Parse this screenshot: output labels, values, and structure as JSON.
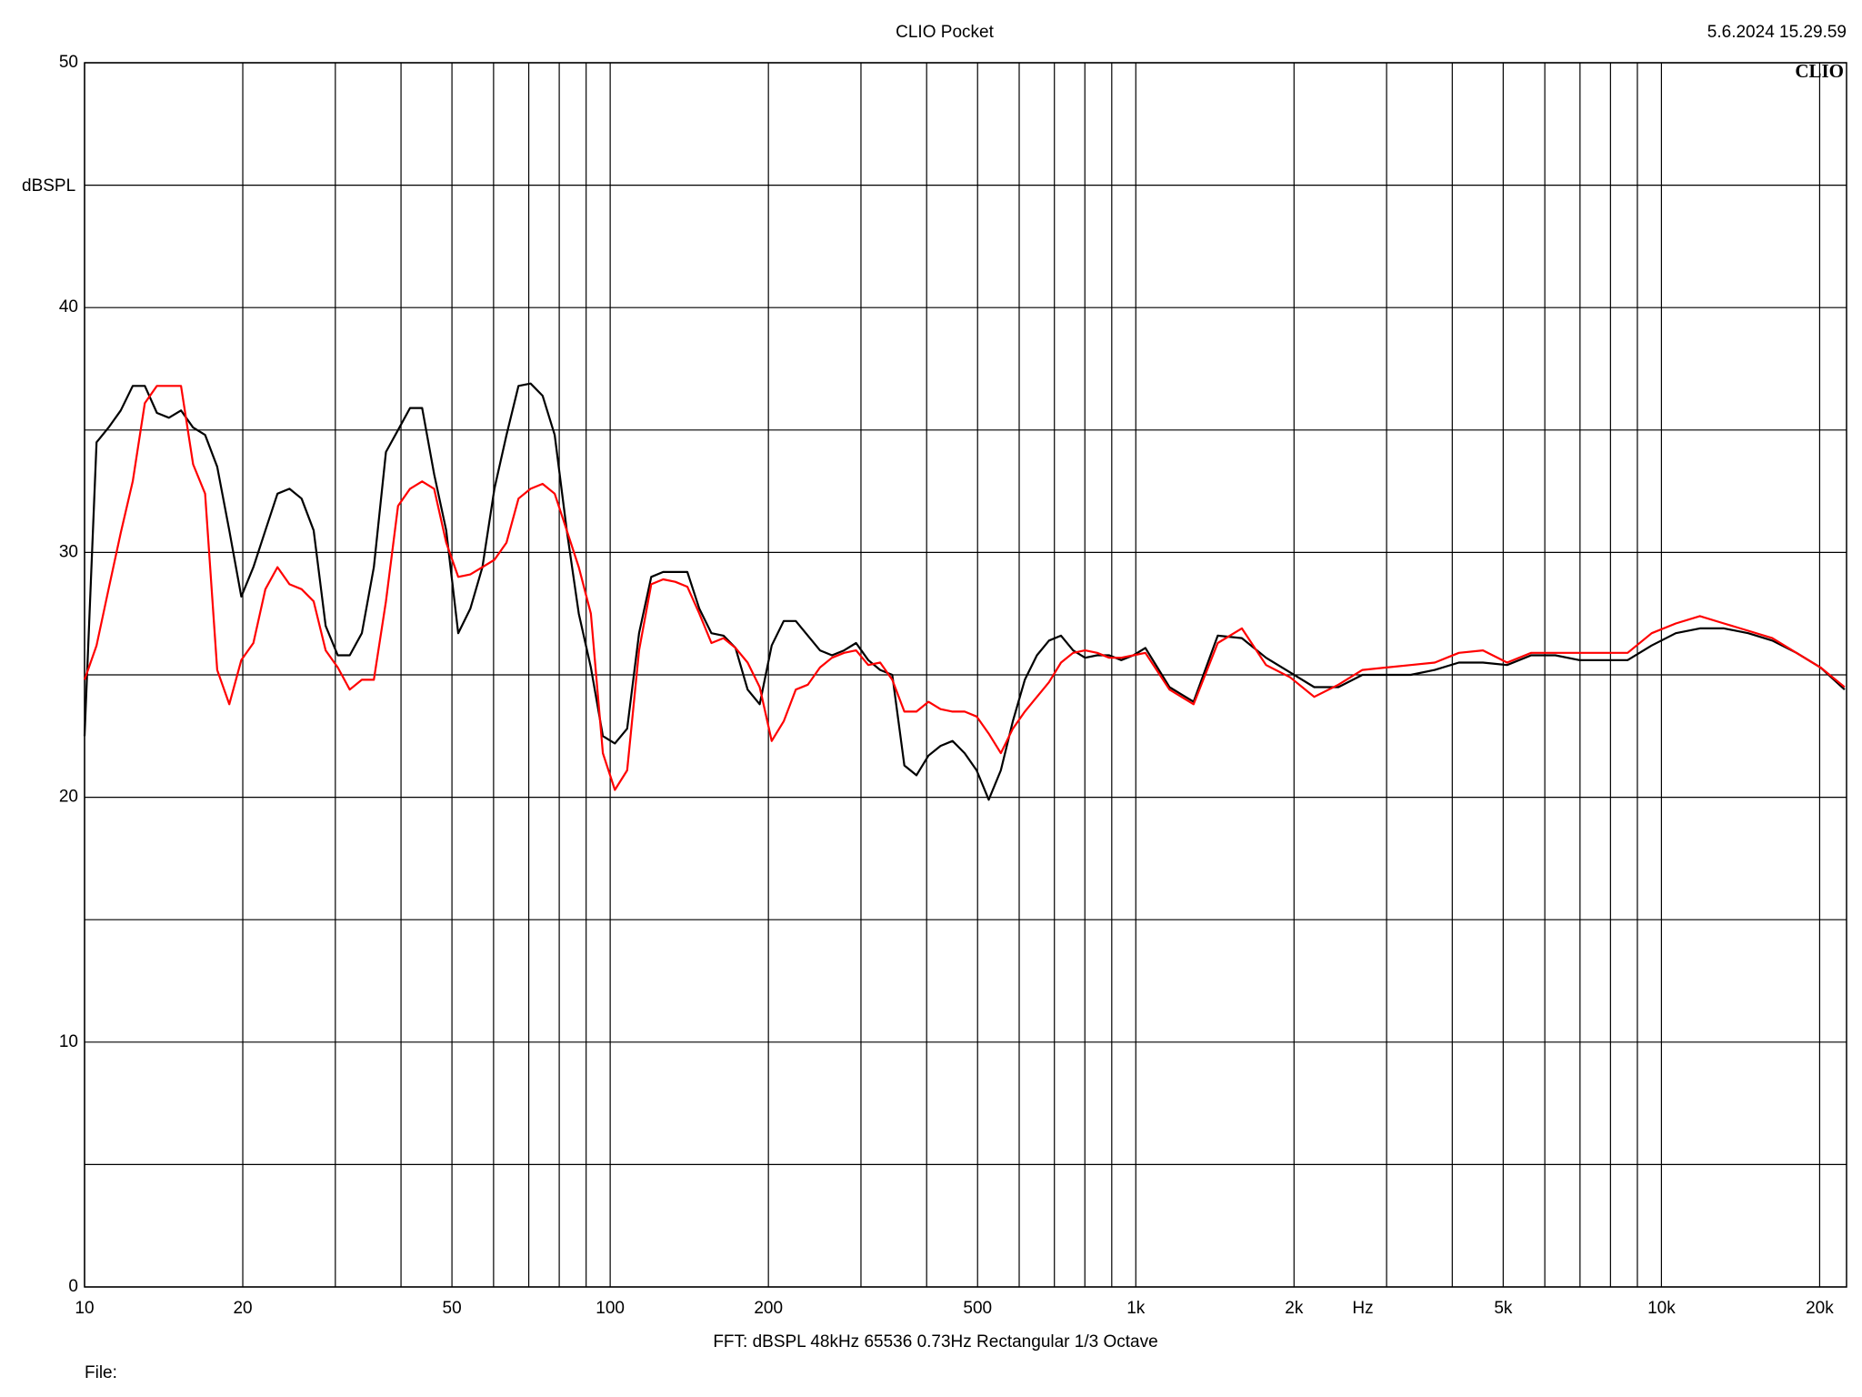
{
  "chart_data": {
    "type": "line",
    "title": "CLIO Pocket",
    "timestamp": "5.6.2024 15.29.59",
    "logo": "CLIO",
    "y_label": "dBSPL",
    "x_label": "Hz",
    "footer": "FFT:  dBSPL  48kHz   65536  0.73Hz  Rectangular  1/3 Octave",
    "file_label": "File:",
    "xscale": "log",
    "grid": true,
    "xlim": [
      10,
      22500
    ],
    "ylim": [
      0,
      50
    ],
    "yticks": [
      0,
      10,
      20,
      30,
      40,
      50
    ],
    "ygrid_minor": [
      5,
      15,
      25,
      35,
      45
    ],
    "xticks": [
      10,
      20,
      50,
      100,
      200,
      500,
      {
        "value": 1000,
        "label": "1k"
      },
      {
        "value": 2000,
        "label": "2k"
      },
      {
        "value": 5000,
        "label": "5k"
      },
      {
        "value": 10000,
        "label": "10k"
      },
      {
        "value": 20000,
        "label": "20k"
      }
    ],
    "xgrid_minor": [
      30,
      40,
      60,
      70,
      80,
      90,
      300,
      400,
      600,
      700,
      800,
      900,
      3000,
      4000,
      6000,
      7000,
      8000,
      9000
    ],
    "x": [
      10,
      10.54,
      11.11,
      11.72,
      12.35,
      13.02,
      13.73,
      14.47,
      15.26,
      16.09,
      16.96,
      17.88,
      18.85,
      19.87,
      20.95,
      22.08,
      23.28,
      24.54,
      25.87,
      27.28,
      28.76,
      30.32,
      31.96,
      33.69,
      35.52,
      37.45,
      39.48,
      41.62,
      43.87,
      46.25,
      48.76,
      51.4,
      54.19,
      57.13,
      60.23,
      63.49,
      66.93,
      70.56,
      74.39,
      78.42,
      82.68,
      87.16,
      91.89,
      96.87,
      102.1,
      107.7,
      113.5,
      119.7,
      126.1,
      133,
      140.2,
      147.8,
      155.8,
      164.3,
      173.2,
      182.6,
      192.5,
      202.9,
      213.9,
      225.5,
      237.8,
      250.7,
      264.2,
      278.6,
      293.7,
      309.7,
      326.4,
      344.1,
      362.8,
      382.5,
      403.2,
      425.1,
      448,
      472.4,
      498,
      525,
      553.5,
      583.5,
      615.1,
      648.4,
      683.6,
      720.6,
      759.7,
      800.9,
      844.4,
      890,
      938.4,
      989.3,
      1042.7,
      1159,
      1288,
      1432,
      1591,
      1769,
      1966,
      2185,
      2429,
      2698,
      3000,
      3334,
      3705,
      4118,
      4575,
      5086,
      5653,
      6282,
      6982,
      7759,
      8624,
      9584,
      10649,
      11837,
      13155,
      14625,
      16249,
      18067,
      20080,
      22316
    ],
    "series": [
      {
        "color": "#000000",
        "values": [
          22.5,
          34.5,
          35.1,
          35.8,
          36.8,
          36.8,
          35.7,
          35.5,
          35.8,
          35.1,
          34.8,
          33.5,
          30.9,
          28.2,
          29.4,
          30.9,
          32.4,
          32.6,
          32.2,
          30.9,
          27.0,
          25.8,
          25.8,
          26.7,
          29.4,
          34.1,
          35.0,
          35.9,
          35.9,
          33.2,
          30.9,
          26.7,
          27.7,
          29.4,
          32.6,
          34.8,
          36.8,
          36.9,
          36.4,
          34.8,
          30.9,
          27.5,
          25.3,
          22.5,
          22.2,
          22.8,
          26.7,
          29.0,
          29.2,
          29.2,
          29.2,
          27.7,
          26.7,
          26.6,
          26.1,
          24.4,
          23.8,
          26.2,
          27.2,
          27.2,
          26.6,
          26.0,
          25.8,
          26.0,
          26.3,
          25.6,
          25.2,
          25.0,
          21.3,
          20.9,
          21.7,
          22.1,
          22.3,
          21.8,
          21.1,
          19.9,
          21.1,
          23.1,
          24.8,
          25.8,
          26.4,
          26.6,
          26.0,
          25.7,
          25.8,
          25.8,
          25.6,
          25.8,
          26.1,
          24.5,
          23.9,
          26.6,
          26.5,
          25.7,
          25.1,
          24.5,
          24.5,
          25.0,
          25.0,
          25.0,
          25.2,
          25.5,
          25.5,
          25.4,
          25.8,
          25.8,
          25.6,
          25.6,
          25.6,
          26.2,
          26.7,
          26.9,
          26.9,
          26.7,
          26.4,
          25.9,
          25.3,
          24.4
        ]
      },
      {
        "color": "#ff0000",
        "values": [
          24.8,
          26.2,
          28.5,
          30.8,
          32.9,
          36.1,
          36.8,
          36.8,
          36.8,
          33.6,
          32.4,
          25.2,
          23.8,
          25.6,
          26.3,
          28.5,
          29.4,
          28.7,
          28.5,
          28.0,
          26.0,
          25.3,
          24.4,
          24.8,
          24.8,
          28.0,
          31.9,
          32.6,
          32.9,
          32.6,
          30.4,
          29.0,
          29.1,
          29.4,
          29.7,
          30.4,
          32.2,
          32.6,
          32.8,
          32.4,
          30.9,
          29.4,
          27.5,
          21.8,
          20.3,
          21.1,
          26.0,
          28.7,
          28.9,
          28.8,
          28.6,
          27.5,
          26.3,
          26.5,
          26.1,
          25.5,
          24.5,
          22.3,
          23.1,
          24.4,
          24.6,
          25.3,
          25.7,
          25.9,
          26.0,
          25.4,
          25.5,
          24.8,
          23.5,
          23.5,
          23.9,
          23.6,
          23.5,
          23.5,
          23.3,
          22.6,
          21.8,
          22.8,
          23.5,
          24.1,
          24.7,
          25.5,
          25.9,
          26.0,
          25.9,
          25.7,
          25.7,
          25.8,
          25.9,
          24.4,
          23.8,
          26.3,
          26.9,
          25.4,
          24.9,
          24.1,
          24.6,
          25.2,
          25.3,
          25.4,
          25.5,
          25.9,
          26.0,
          25.5,
          25.9,
          25.9,
          25.9,
          25.9,
          25.9,
          26.7,
          27.1,
          27.4,
          27.1,
          26.8,
          26.5,
          25.9,
          25.3,
          24.5
        ]
      }
    ]
  }
}
